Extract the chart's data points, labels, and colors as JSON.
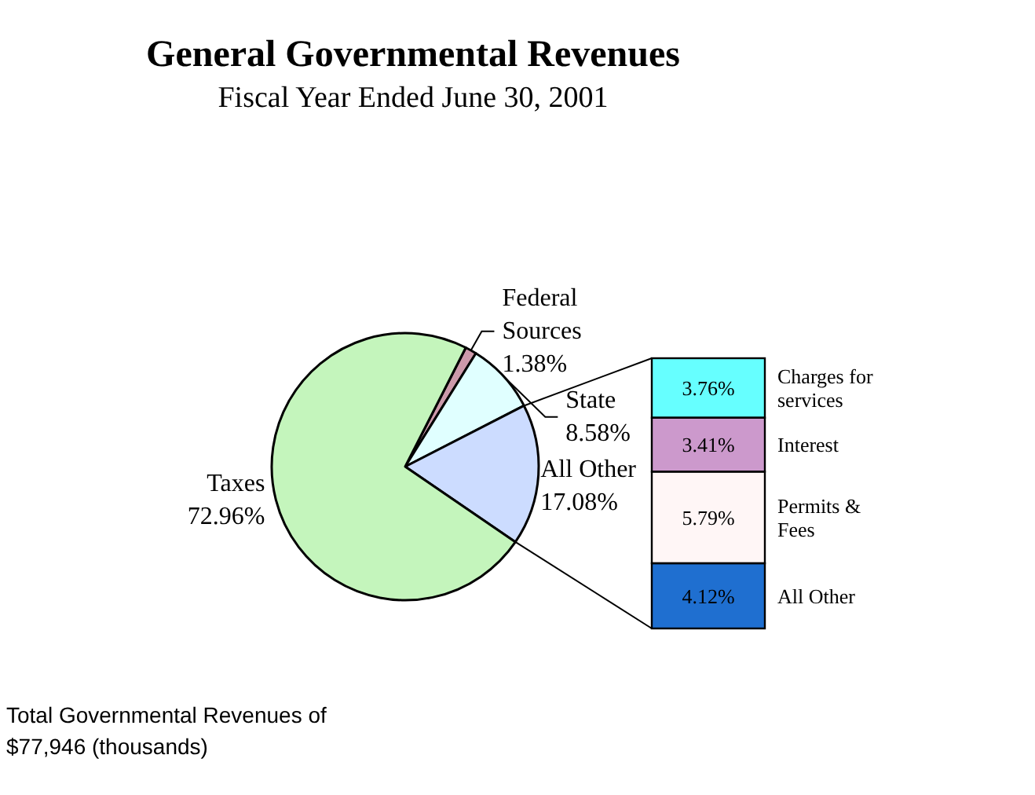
{
  "chart_data": [
    {
      "type": "pie",
      "title": "General Governmental Revenues",
      "subtitle": "Fiscal Year Ended June 30, 2001",
      "categories": [
        "Federal Sources",
        "State",
        "All Other",
        "Taxes"
      ],
      "values": [
        1.38,
        8.58,
        17.08,
        72.96
      ],
      "value_labels": [
        "1.38%",
        "8.58%",
        "17.08%",
        "72.96%"
      ],
      "colors": [
        "#cc99aa",
        "#e0ffff",
        "#ccdcff",
        "#c4f5bc"
      ],
      "annotations": [
        "Total Governmental Revenues of $77,946 (thousands)"
      ]
    },
    {
      "type": "bar",
      "stacked": true,
      "categories": [
        null
      ],
      "series": [
        {
          "name": "All Other",
          "color": "#1f6fd0",
          "values": [
            4.12
          ],
          "value_labels": [
            "4.12%"
          ]
        },
        {
          "name": "Permits & Fees",
          "color": "#fff6f6",
          "values": [
            5.79
          ],
          "value_labels": [
            "5.79%"
          ]
        },
        {
          "name": "Interest",
          "color": "#cc99cc",
          "values": [
            3.41
          ],
          "value_labels": [
            "3.41%"
          ]
        },
        {
          "name": "Charges for services",
          "color": "#66ffff",
          "values": [
            3.76
          ],
          "value_labels": [
            "3.76%"
          ]
        }
      ]
    }
  ]
}
